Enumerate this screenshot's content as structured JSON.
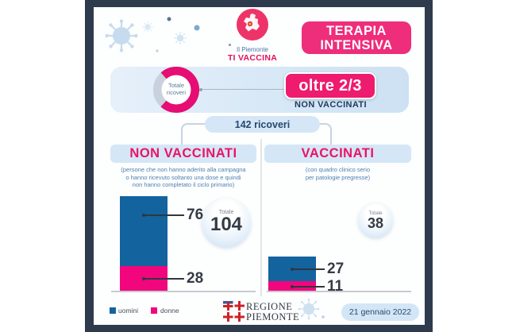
{
  "colors": {
    "accent_pink": "#ee1b6e",
    "bar_blue": "#13639f",
    "bar_pink": "#f1067d",
    "frame_navy": "#2d3b4d",
    "panel_blue": "#d5e6f6"
  },
  "header": {
    "logo_line1": "Il Piemonte",
    "logo_line2": "TI VACCINA",
    "badge_line1": "TERAPIA",
    "badge_line2": "INTENSIVA"
  },
  "summary": {
    "donut_label_line1": "Totale",
    "donut_label_line2": "ricoveri",
    "highlight": "oltre 2/3",
    "highlight_sub": "NON VACCINATI",
    "total_pill": "142 ricoveri"
  },
  "columns": [
    {
      "title": "NON VACCINATI",
      "description_lines": [
        "(persone che non hanno aderito alla campagna",
        "o hanno ricevuto soltanto una dose e quindi",
        "non hanno completato il ciclo primario)"
      ],
      "total_label": "Totale",
      "total": "104",
      "uomini": "76",
      "donne": "28"
    },
    {
      "title": "VACCINATI",
      "description_lines": [
        "(con quadro clinico serio",
        "per patologie pregresse)"
      ],
      "total_label": "Totale",
      "total": "38",
      "uomini": "27",
      "donne": "11"
    }
  ],
  "legend": [
    {
      "label": "uomini",
      "color": "#13639f"
    },
    {
      "label": "donne",
      "color": "#f1067d"
    }
  ],
  "footer": {
    "brand_line1": "REGIONE",
    "brand_line2": "PIEMONTE",
    "date": "21 gennaio 2022"
  },
  "chart_data": [
    {
      "type": "pie",
      "title": "Totale ricoveri",
      "annotation": "oltre 2/3 NON VACCINATI",
      "total": 142,
      "slices": [
        {
          "label": "non vaccinati",
          "value": 104
        },
        {
          "label": "vaccinati",
          "value": 38
        }
      ]
    },
    {
      "type": "bar",
      "stacked": true,
      "title": "NON VACCINATI",
      "categories": [
        "uomini",
        "donne"
      ],
      "values": [
        76,
        28
      ],
      "total": 104
    },
    {
      "type": "bar",
      "stacked": true,
      "title": "VACCINATI",
      "categories": [
        "uomini",
        "donne"
      ],
      "values": [
        27,
        11
      ],
      "total": 38
    }
  ]
}
